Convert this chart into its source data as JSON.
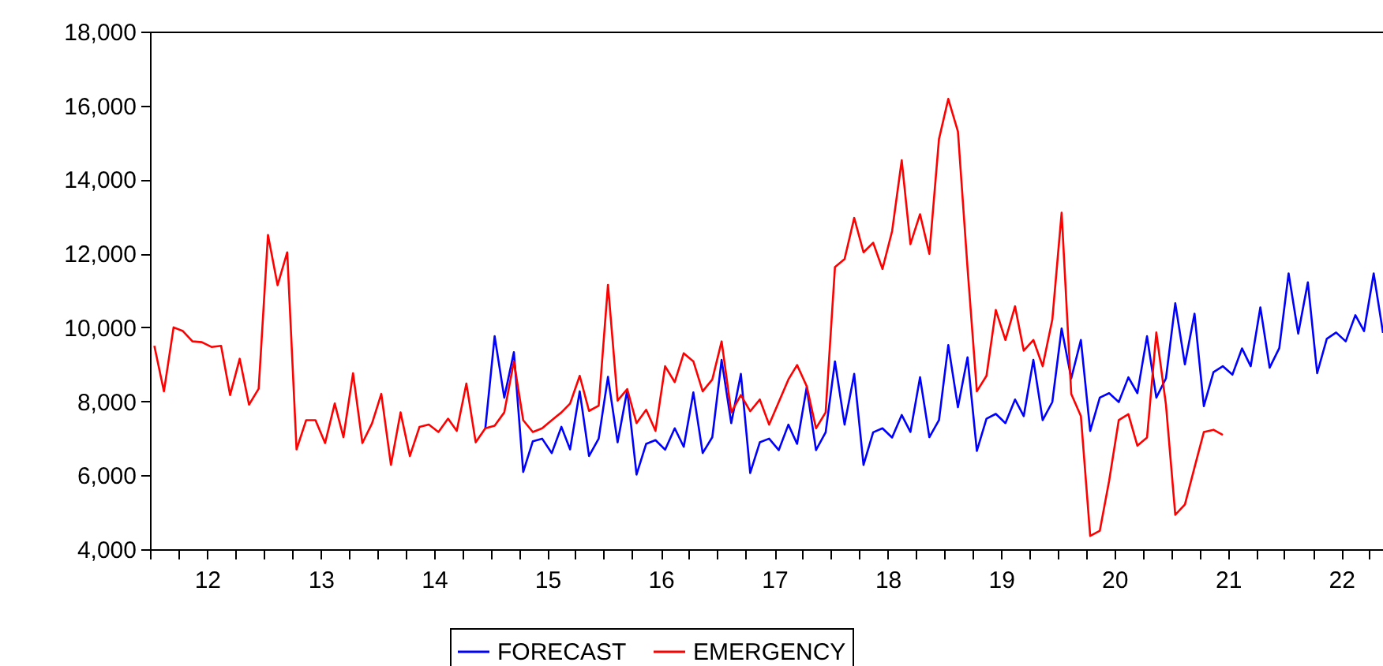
{
  "chart_data": {
    "type": "line",
    "x": [
      "2011-07-15",
      "2011-08-15",
      "2011-09-15",
      "2011-10-15",
      "2011-11-15",
      "2011-12-15",
      "2012-01-15",
      "2012-02-15",
      "2012-03-15",
      "2012-04-15",
      "2012-05-15",
      "2012-06-15",
      "2012-07-15",
      "2012-08-15",
      "2012-09-15",
      "2012-10-15",
      "2012-11-15",
      "2012-12-15",
      "2013-01-15",
      "2013-02-15",
      "2013-03-15",
      "2013-04-15",
      "2013-05-15",
      "2013-06-15",
      "2013-07-15",
      "2013-08-15",
      "2013-09-15",
      "2013-10-15",
      "2013-11-15",
      "2013-12-15",
      "2014-01-15",
      "2014-02-15",
      "2014-03-15",
      "2014-04-15",
      "2014-05-15",
      "2014-06-15",
      "2014-07-15",
      "2014-08-15",
      "2014-09-15",
      "2014-10-15",
      "2014-11-15",
      "2014-12-15",
      "2015-01-15",
      "2015-02-15",
      "2015-03-15",
      "2015-04-15",
      "2015-05-15",
      "2015-06-15",
      "2015-07-15",
      "2015-08-15",
      "2015-09-15",
      "2015-10-15",
      "2015-11-15",
      "2015-12-15",
      "2016-01-15",
      "2016-02-15",
      "2016-03-15",
      "2016-04-15",
      "2016-05-15",
      "2016-06-15",
      "2016-07-15",
      "2016-08-15",
      "2016-09-15",
      "2016-10-15",
      "2016-11-15",
      "2016-12-15",
      "2017-01-15",
      "2017-02-15",
      "2017-03-15",
      "2017-04-15",
      "2017-05-15",
      "2017-06-15",
      "2017-07-15",
      "2017-08-15",
      "2017-09-15",
      "2017-10-15",
      "2017-11-15",
      "2017-12-15",
      "2018-01-15",
      "2018-02-15",
      "2018-03-15",
      "2018-04-15",
      "2018-05-15",
      "2018-06-15",
      "2018-07-15",
      "2018-08-15",
      "2018-09-15",
      "2018-10-15",
      "2018-11-15",
      "2018-12-15",
      "2019-01-15",
      "2019-02-15",
      "2019-03-15",
      "2019-04-15",
      "2019-05-15",
      "2019-06-15",
      "2019-07-15",
      "2019-08-15",
      "2019-09-15",
      "2019-10-15",
      "2019-11-15",
      "2019-12-15",
      "2020-01-15",
      "2020-02-15",
      "2020-03-15",
      "2020-04-15",
      "2020-05-15",
      "2020-06-15",
      "2020-07-15",
      "2020-08-15",
      "2020-09-15",
      "2020-10-15",
      "2020-11-15",
      "2020-12-15",
      "2021-01-15",
      "2021-02-15",
      "2021-03-15",
      "2021-04-15",
      "2021-05-15",
      "2021-06-15",
      "2021-07-15",
      "2021-08-15",
      "2021-09-15",
      "2021-10-15",
      "2021-11-15",
      "2021-12-15",
      "2022-01-15",
      "2022-02-15",
      "2022-03-15",
      "2022-04-15",
      "2022-05-15"
    ],
    "series": [
      {
        "name": "FORECAST",
        "color": "#0000ff",
        "values": [
          null,
          null,
          null,
          null,
          null,
          null,
          null,
          null,
          null,
          null,
          null,
          null,
          null,
          null,
          null,
          null,
          null,
          null,
          null,
          null,
          null,
          null,
          null,
          null,
          null,
          null,
          null,
          null,
          null,
          null,
          null,
          null,
          null,
          null,
          null,
          7270,
          9760,
          8100,
          9330,
          6090,
          6920,
          6990,
          6600,
          7310,
          6700,
          8270,
          6520,
          6990,
          8660,
          6890,
          8300,
          6020,
          6850,
          6950,
          6690,
          7270,
          6770,
          8240,
          6600,
          7030,
          9120,
          7410,
          8740,
          6060,
          6890,
          6990,
          6680,
          7370,
          6850,
          8380,
          6680,
          7160,
          9080,
          7370,
          8740,
          6280,
          7160,
          7270,
          7020,
          7630,
          7170,
          8650,
          7030,
          7490,
          9520,
          7840,
          9190,
          6660,
          7530,
          7660,
          7410,
          8050,
          7600,
          9120,
          7490,
          7980,
          9970,
          8620,
          9660,
          7200,
          8100,
          8220,
          7980,
          8650,
          8220,
          9760,
          8100,
          8620,
          10650,
          9000,
          10370,
          7870,
          8790,
          8950,
          8720,
          9430,
          8950,
          10540,
          8910,
          9440,
          11460,
          9830,
          11220,
          8760,
          9690,
          9860,
          9620,
          10330,
          9900,
          11460,
          9850
        ]
      },
      {
        "name": "EMERGENCY",
        "color": "#ff0000",
        "values": [
          9500,
          8270,
          10000,
          9900,
          9620,
          9600,
          9470,
          9500,
          8170,
          9150,
          7910,
          8340,
          12500,
          11140,
          12030,
          6700,
          7490,
          7490,
          6870,
          7940,
          7030,
          8760,
          6870,
          7400,
          8200,
          6280,
          7700,
          6520,
          7310,
          7370,
          7170,
          7530,
          7200,
          8480,
          6890,
          7270,
          7340,
          7700,
          9080,
          7490,
          7170,
          7270,
          7490,
          7700,
          7940,
          8690,
          7740,
          7880,
          11150,
          8020,
          8330,
          7410,
          7770,
          7200,
          8950,
          8520,
          9300,
          9080,
          8270,
          8590,
          9620,
          7700,
          8170,
          7730,
          8050,
          7370,
          7980,
          8590,
          8980,
          8410,
          7270,
          7700,
          11630,
          11850,
          12960,
          12030,
          12290,
          11580,
          12600,
          14520,
          12250,
          13060,
          11990,
          15090,
          16180,
          15300,
          11600,
          8270,
          8690,
          10470,
          9660,
          10570,
          9370,
          9660,
          8950,
          10210,
          13100,
          8200,
          7600,
          4360,
          4500,
          5850,
          7490,
          7650,
          6800,
          7020,
          9860,
          7910,
          4930,
          5210,
          6210,
          7170,
          7230,
          7090,
          null,
          null,
          null,
          null,
          null,
          null,
          null,
          null,
          null,
          null,
          null,
          null,
          null,
          null,
          null,
          null,
          null
        ]
      }
    ],
    "xlim": [
      "2011-07-01",
      "2022-05-15"
    ],
    "xticks": [
      {
        "value": "2011-07-01",
        "label": null
      },
      {
        "value": "2011-10-01",
        "label": null
      },
      {
        "value": "2012-01-01",
        "label": "12"
      },
      {
        "value": "2012-04-01",
        "label": null
      },
      {
        "value": "2012-07-01",
        "label": null
      },
      {
        "value": "2012-10-01",
        "label": null
      },
      {
        "value": "2013-01-01",
        "label": "13"
      },
      {
        "value": "2013-04-01",
        "label": null
      },
      {
        "value": "2013-07-01",
        "label": null
      },
      {
        "value": "2013-10-01",
        "label": null
      },
      {
        "value": "2014-01-01",
        "label": "14"
      },
      {
        "value": "2014-04-01",
        "label": null
      },
      {
        "value": "2014-07-01",
        "label": null
      },
      {
        "value": "2014-10-01",
        "label": null
      },
      {
        "value": "2015-01-01",
        "label": "15"
      },
      {
        "value": "2015-04-01",
        "label": null
      },
      {
        "value": "2015-07-01",
        "label": null
      },
      {
        "value": "2015-10-01",
        "label": null
      },
      {
        "value": "2016-01-01",
        "label": "16"
      },
      {
        "value": "2016-04-01",
        "label": null
      },
      {
        "value": "2016-07-01",
        "label": null
      },
      {
        "value": "2016-10-01",
        "label": null
      },
      {
        "value": "2017-01-01",
        "label": "17"
      },
      {
        "value": "2017-04-01",
        "label": null
      },
      {
        "value": "2017-07-01",
        "label": null
      },
      {
        "value": "2017-10-01",
        "label": null
      },
      {
        "value": "2018-01-01",
        "label": "18"
      },
      {
        "value": "2018-04-01",
        "label": null
      },
      {
        "value": "2018-07-01",
        "label": null
      },
      {
        "value": "2018-10-01",
        "label": null
      },
      {
        "value": "2019-01-01",
        "label": "19"
      },
      {
        "value": "2019-04-01",
        "label": null
      },
      {
        "value": "2019-07-01",
        "label": null
      },
      {
        "value": "2019-10-01",
        "label": null
      },
      {
        "value": "2020-01-01",
        "label": "20"
      },
      {
        "value": "2020-04-01",
        "label": null
      },
      {
        "value": "2020-07-01",
        "label": null
      },
      {
        "value": "2020-10-01",
        "label": null
      },
      {
        "value": "2021-01-01",
        "label": "21"
      },
      {
        "value": "2021-04-01",
        "label": null
      },
      {
        "value": "2021-07-01",
        "label": null
      },
      {
        "value": "2021-10-01",
        "label": null
      },
      {
        "value": "2022-01-01",
        "label": "22"
      },
      {
        "value": "2022-04-01",
        "label": null
      }
    ],
    "ylim": [
      4000,
      18000
    ],
    "yticks": [
      {
        "value": 4000,
        "label": "4,000"
      },
      {
        "value": 6000,
        "label": "6,000"
      },
      {
        "value": 8000,
        "label": "8,000"
      },
      {
        "value": 10000,
        "label": "10,000"
      },
      {
        "value": 12000,
        "label": "12,000"
      },
      {
        "value": 14000,
        "label": "14,000"
      },
      {
        "value": 16000,
        "label": "16,000"
      },
      {
        "value": 18000,
        "label": "18,000"
      }
    ],
    "grid": false,
    "legend": "bottom",
    "line_style": "solid"
  }
}
